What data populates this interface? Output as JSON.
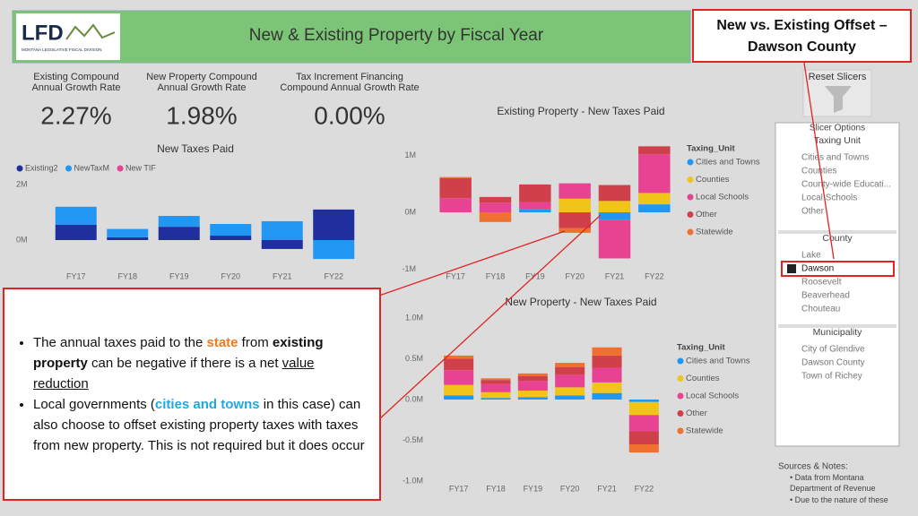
{
  "header": {
    "logo": "LFD",
    "logo_sub": "MONTANA LEGISLATIVE FISCAL DIVISION",
    "title": "New & Existing Property by Fiscal Year"
  },
  "callout_title": "New vs. Existing Offset – Dawson County",
  "kpis": [
    {
      "label_lines": [
        "Existing Compound",
        "Annual Growth Rate"
      ],
      "value": "2.27%"
    },
    {
      "label_lines": [
        "New Property Compound",
        "Annual Growth Rate"
      ],
      "value": "1.98%"
    },
    {
      "label_lines": [
        "Tax Increment Financing",
        "Compound Annual Growth Rate"
      ],
      "value": "0.00%"
    }
  ],
  "reset_button": "Reset Slicers",
  "slicers": {
    "title": "Slicer Options",
    "groups": [
      {
        "name": "Taxing Unit",
        "items": [
          "Cities and Towns",
          "Counties",
          "County-wide Educati...",
          "Local Schools",
          "Other"
        ]
      },
      {
        "name": "County",
        "items": [
          "Lake",
          "Dawson",
          "Roosevelt",
          "Beaverhead",
          "Chouteau"
        ],
        "selected": 1
      },
      {
        "name": "Municipality",
        "items": [
          "City of Glendive",
          "Dawson County",
          "Town of Richey"
        ]
      }
    ]
  },
  "bullets": [
    [
      "The annual taxes paid to the ",
      "state",
      " from ",
      "existing property",
      " can be negative if there is a net ",
      "value reduction"
    ],
    [
      "Local governments (",
      "cities and towns",
      " in this case) can also choose to offset existing property taxes with taxes from new property.  This is not required but it does occur"
    ]
  ],
  "notes": {
    "title": "Sources & Notes:",
    "items": [
      "Data from Montana Department of Revenue",
      "Due to the nature of these"
    ]
  },
  "chart_data": [
    {
      "type": "bar",
      "stacked": true,
      "title": "New Taxes Paid",
      "legend": "top",
      "categories": [
        "FY17",
        "FY18",
        "FY19",
        "FY20",
        "FY21",
        "FY22"
      ],
      "series": [
        {
          "name": "Existing2",
          "color": "#1f2f9e",
          "values": [
            0.55,
            0.1,
            0.48,
            0.16,
            -0.32,
            1.1
          ]
        },
        {
          "name": "NewTaxM",
          "color": "#2196f3",
          "values": [
            0.65,
            0.3,
            0.39,
            0.42,
            0.68,
            -0.68
          ]
        },
        {
          "name": "New TIF",
          "color": "#e84393",
          "values": [
            0,
            0,
            0,
            0,
            0,
            0
          ]
        }
      ],
      "ylim": [
        -0.9,
        2.4
      ],
      "yticks": [
        {
          "value": 0,
          "label": "0M"
        },
        {
          "value": 2,
          "label": "2M"
        }
      ]
    },
    {
      "type": "bar",
      "stacked": true,
      "title": "Existing Property - New Taxes Paid",
      "legend": "right",
      "legend_title": "Taxing_Unit",
      "categories": [
        "FY17",
        "FY18",
        "FY19",
        "FY20",
        "FY21",
        "FY22"
      ],
      "series": [
        {
          "name": "Cities and Towns",
          "color": "#2196f3",
          "values": [
            0,
            0,
            0.05,
            0,
            -0.13,
            0.14
          ]
        },
        {
          "name": "Counties",
          "color": "#f0c419",
          "values": [
            0,
            0,
            0,
            0.24,
            0.2,
            0.2
          ]
        },
        {
          "name": "Local Schools",
          "color": "#e84393",
          "values": [
            0.25,
            0.17,
            0.13,
            0.27,
            -0.68,
            0.68
          ]
        },
        {
          "name": "Other",
          "color": "#d0404a",
          "values": [
            0.35,
            0.1,
            0.31,
            -0.28,
            0.28,
            0.14
          ]
        },
        {
          "name": "Statewide",
          "color": "#f07030",
          "values": [
            0.02,
            -0.17,
            0,
            -0.08,
            0,
            0
          ]
        }
      ],
      "ylim": [
        -1.05,
        1.2
      ],
      "yticks": [
        {
          "value": -1,
          "label": "-1M"
        },
        {
          "value": 0,
          "label": "0M"
        },
        {
          "value": 1,
          "label": "1M"
        }
      ]
    },
    {
      "type": "bar",
      "stacked": true,
      "title": "New Property - New Taxes Paid",
      "legend": "right",
      "legend_title": "Taxing_Unit",
      "categories": [
        "FY17",
        "FY18",
        "FY19",
        "FY20",
        "FY21",
        "FY22"
      ],
      "series": [
        {
          "name": "Cities and Towns",
          "color": "#2196f3",
          "values": [
            0.05,
            0.02,
            0.03,
            0.05,
            0.08,
            -0.03
          ]
        },
        {
          "name": "Counties",
          "color": "#f0c419",
          "values": [
            0.13,
            0.07,
            0.08,
            0.1,
            0.13,
            -0.16
          ]
        },
        {
          "name": "Local Schools",
          "color": "#e84393",
          "values": [
            0.18,
            0.1,
            0.12,
            0.15,
            0.18,
            -0.2
          ]
        },
        {
          "name": "Other",
          "color": "#d0404a",
          "values": [
            0.14,
            0.05,
            0.06,
            0.1,
            0.15,
            -0.16
          ]
        },
        {
          "name": "Statewide",
          "color": "#f07030",
          "values": [
            0.04,
            0.02,
            0.03,
            0.05,
            0.1,
            -0.1
          ]
        }
      ],
      "ylim": [
        -1.05,
        1.05
      ],
      "yticks": [
        {
          "value": -1,
          "label": "-1.0M"
        },
        {
          "value": -0.5,
          "label": "-0.5M"
        },
        {
          "value": 0,
          "label": "0.0M"
        },
        {
          "value": 0.5,
          "label": "0.5M"
        },
        {
          "value": 1,
          "label": "1.0M"
        }
      ]
    }
  ]
}
